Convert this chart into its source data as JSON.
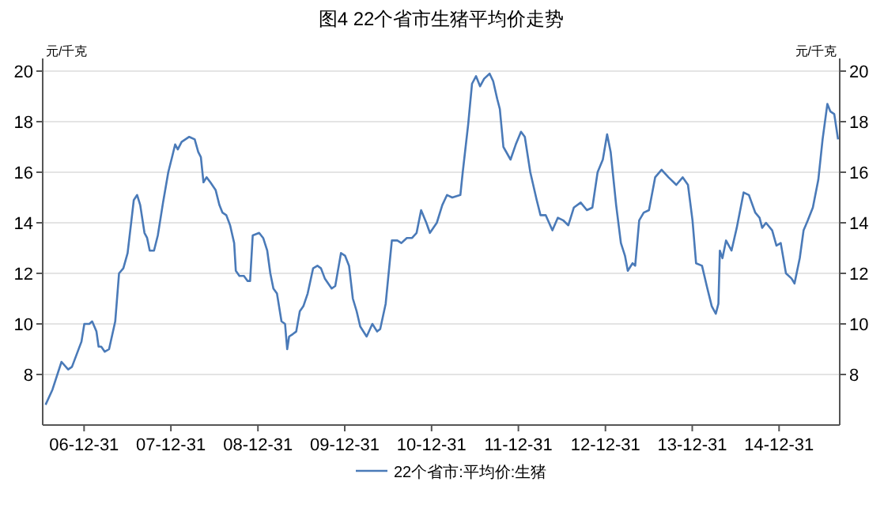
{
  "chart_data": {
    "type": "line",
    "title": "图4 22个省市生猪平均价走势",
    "ylabel": "元/千克",
    "y2label": "元/千克",
    "x": [
      "2006-07-22",
      "2006-08-20",
      "2006-09-27",
      "2006-10-25",
      "2006-11-10",
      "2006-12-20",
      "2007-01-01",
      "2007-01-22",
      "2007-02-03",
      "2007-02-21",
      "2007-03-02",
      "2007-03-13",
      "2007-03-28",
      "2007-04-15",
      "2007-05-11",
      "2007-05-27",
      "2007-06-14",
      "2007-07-02",
      "2007-07-28",
      "2007-08-11",
      "2007-08-24",
      "2007-09-11",
      "2007-09-22",
      "2007-10-03",
      "2007-10-21",
      "2007-11-06",
      "2007-11-28",
      "2007-12-20",
      "2008-01-05",
      "2008-01-18",
      "2008-01-29",
      "2008-02-14",
      "2008-03-17",
      "2008-04-09",
      "2008-04-24",
      "2008-05-05",
      "2008-05-16",
      "2008-05-29",
      "2008-06-14",
      "2008-07-06",
      "2008-07-22",
      "2008-08-04",
      "2008-08-20",
      "2008-09-05",
      "2008-09-22",
      "2008-09-29",
      "2008-10-14",
      "2008-11-02",
      "2008-11-17",
      "2008-11-28",
      "2008-12-09",
      "2009-01-05",
      "2009-01-22",
      "2009-02-08",
      "2009-02-21",
      "2009-03-06",
      "2009-03-21",
      "2009-04-09",
      "2009-04-24",
      "2009-05-03",
      "2009-05-11",
      "2009-05-27",
      "2009-06-10",
      "2009-06-25",
      "2009-07-10",
      "2009-07-28",
      "2009-08-20",
      "2009-09-07",
      "2009-09-22",
      "2009-10-08",
      "2009-11-06",
      "2009-11-21",
      "2009-12-15",
      "2010-01-01",
      "2010-01-18",
      "2010-02-03",
      "2010-02-19",
      "2010-03-06",
      "2010-04-02",
      "2010-04-26",
      "2010-05-16",
      "2010-05-29",
      "2010-06-21",
      "2010-07-17",
      "2010-08-09",
      "2010-08-26",
      "2010-09-18",
      "2010-10-10",
      "2010-10-29",
      "2010-11-17",
      "2010-12-09",
      "2010-12-24",
      "2011-01-22",
      "2011-02-14",
      "2011-03-06",
      "2011-03-28",
      "2011-05-01",
      "2011-05-11",
      "2011-06-03",
      "2011-06-19",
      "2011-07-06",
      "2011-07-23",
      "2011-08-09",
      "2011-09-01",
      "2011-09-16",
      "2011-10-03",
      "2011-10-14",
      "2011-10-29",
      "2011-11-28",
      "2011-12-20",
      "2012-01-11",
      "2012-01-27",
      "2012-02-19",
      "2012-03-17",
      "2012-04-02",
      "2012-04-24",
      "2012-05-22",
      "2012-06-14",
      "2012-07-06",
      "2012-07-28",
      "2012-08-20",
      "2012-09-18",
      "2012-10-14",
      "2012-11-06",
      "2012-11-28",
      "2012-12-20",
      "2013-01-07",
      "2013-01-22",
      "2013-02-14",
      "2013-03-06",
      "2013-03-23",
      "2013-04-04",
      "2013-04-24",
      "2013-05-05",
      "2013-05-22",
      "2013-06-10",
      "2013-07-02",
      "2013-07-28",
      "2013-08-24",
      "2013-09-22",
      "2013-10-25",
      "2013-11-21",
      "2013-12-13",
      "2014-01-01",
      "2014-01-16",
      "2014-02-10",
      "2014-03-02",
      "2014-03-23",
      "2014-04-09",
      "2014-04-20",
      "2014-04-26",
      "2014-05-07",
      "2014-05-22",
      "2014-06-14",
      "2014-07-06",
      "2014-08-04",
      "2014-08-26",
      "2014-09-22",
      "2014-10-10",
      "2014-10-21",
      "2014-11-06",
      "2014-12-02",
      "2014-12-20",
      "2015-01-07",
      "2015-01-29",
      "2015-02-21",
      "2015-03-06",
      "2015-03-28",
      "2015-04-13",
      "2015-05-01",
      "2015-05-22",
      "2015-06-14",
      "2015-07-02",
      "2015-07-22",
      "2015-08-04",
      "2015-08-20",
      "2015-09-05"
    ],
    "series": [
      {
        "name": "22个省市:平均价:生猪",
        "color": "#4a7ab8",
        "values": [
          6.8,
          7.4,
          8.5,
          8.2,
          8.3,
          9.3,
          10.0,
          10.0,
          10.1,
          9.7,
          9.1,
          9.1,
          8.9,
          9.0,
          10.1,
          12.0,
          12.2,
          12.8,
          14.9,
          15.1,
          14.7,
          13.6,
          13.4,
          12.9,
          12.9,
          13.5,
          14.8,
          16.0,
          16.6,
          17.1,
          16.9,
          17.2,
          17.4,
          17.3,
          16.8,
          16.6,
          15.6,
          15.8,
          15.6,
          15.3,
          14.7,
          14.4,
          14.3,
          13.9,
          13.2,
          12.1,
          11.9,
          11.9,
          11.7,
          11.7,
          13.5,
          13.6,
          13.4,
          12.9,
          12.0,
          11.4,
          11.2,
          10.1,
          10.0,
          9.0,
          9.5,
          9.6,
          9.7,
          10.5,
          10.7,
          11.2,
          12.2,
          12.3,
          12.2,
          11.8,
          11.4,
          11.5,
          12.8,
          12.7,
          12.3,
          11.0,
          10.5,
          9.9,
          9.5,
          10.0,
          9.7,
          9.8,
          10.8,
          13.3,
          13.3,
          13.2,
          13.4,
          13.4,
          13.6,
          14.5,
          14.0,
          13.6,
          14.0,
          14.7,
          15.1,
          15.0,
          15.1,
          16.0,
          17.9,
          19.5,
          19.8,
          19.4,
          19.7,
          19.9,
          19.6,
          18.9,
          18.5,
          17.0,
          16.5,
          17.1,
          17.6,
          17.4,
          16.0,
          14.9,
          14.3,
          14.3,
          13.7,
          14.2,
          14.1,
          13.9,
          14.6,
          14.8,
          14.5,
          14.6,
          16.0,
          16.5,
          17.5,
          16.8,
          14.7,
          13.2,
          12.7,
          12.1,
          12.4,
          12.3,
          14.1,
          14.4,
          14.5,
          15.8,
          16.1,
          15.8,
          15.5,
          15.8,
          15.5,
          14.1,
          12.4,
          12.3,
          11.5,
          10.7,
          10.4,
          10.8,
          12.9,
          12.6,
          13.3,
          12.9,
          13.8,
          15.2,
          15.1,
          14.4,
          14.2,
          13.8,
          14.0,
          13.7,
          13.1,
          13.2,
          12.0,
          11.8,
          11.6,
          12.6,
          13.7,
          14.1,
          14.6,
          15.7,
          17.3,
          18.7,
          18.4,
          18.3,
          17.3
        ]
      }
    ],
    "xlim": [
      "2006-07-10",
      "2015-09-12"
    ],
    "xticks": [
      {
        "value": "2006-12-31",
        "label": "06-12-31"
      },
      {
        "value": "2007-12-31",
        "label": "07-12-31"
      },
      {
        "value": "2008-12-31",
        "label": "08-12-31"
      },
      {
        "value": "2009-12-31",
        "label": "09-12-31"
      },
      {
        "value": "2010-12-31",
        "label": "10-12-31"
      },
      {
        "value": "2011-12-31",
        "label": "11-12-31"
      },
      {
        "value": "2012-12-31",
        "label": "12-12-31"
      },
      {
        "value": "2013-12-31",
        "label": "13-12-31"
      },
      {
        "value": "2014-12-31",
        "label": "14-12-31"
      }
    ],
    "ylim": [
      6,
      20.5
    ],
    "yticks": [
      8,
      10,
      12,
      14,
      16,
      18,
      20
    ],
    "y2lim": [
      6,
      20.5
    ],
    "y2ticks": [
      8,
      10,
      12,
      14,
      16,
      18,
      20
    ],
    "grid": "y",
    "legend": "bottom"
  }
}
